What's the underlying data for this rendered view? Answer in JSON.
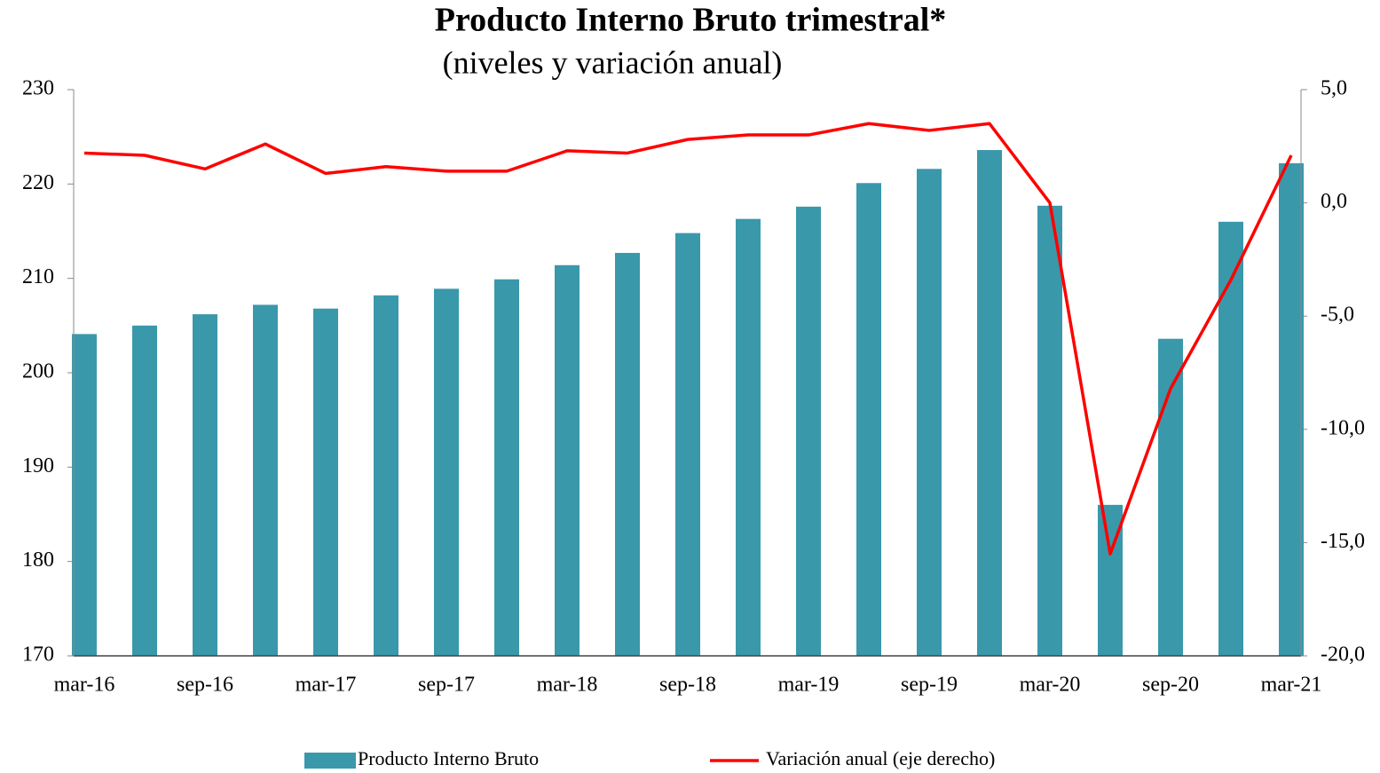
{
  "chart_data": {
    "type": "bar_line",
    "title": "Producto Interno Bruto trimestral*",
    "subtitle": "(niveles y variación anual)",
    "categories": [
      "mar-16",
      null,
      "sep-16",
      null,
      "mar-17",
      null,
      "sep-17",
      null,
      "mar-18",
      null,
      "sep-18",
      null,
      "mar-19",
      null,
      "sep-19",
      null,
      "mar-20",
      null,
      "sep-20",
      null,
      "mar-21"
    ],
    "series": [
      {
        "name": "Producto Interno Bruto",
        "type": "bar",
        "color": "#3a98ab",
        "values": [
          204.1,
          205.0,
          206.2,
          207.2,
          206.8,
          208.2,
          208.9,
          209.9,
          211.4,
          212.7,
          214.8,
          216.3,
          217.6,
          220.1,
          221.6,
          223.6,
          217.7,
          186.0,
          203.6,
          216.0,
          222.2
        ]
      },
      {
        "name": "Variación anual (eje derecho)",
        "type": "line",
        "axis": "y2",
        "color": "#ff0000",
        "values": [
          2.2,
          2.1,
          1.5,
          2.6,
          1.3,
          1.6,
          1.4,
          1.4,
          2.3,
          2.2,
          2.8,
          3.0,
          3.0,
          3.5,
          3.2,
          3.5,
          0.0,
          -15.5,
          -8.2,
          -3.4,
          2.1
        ]
      }
    ],
    "ylim": [
      170,
      230
    ],
    "yticks": [
      170,
      180,
      190,
      200,
      210,
      220,
      230
    ],
    "y2lim": [
      -20,
      5
    ],
    "y2ticks": [
      {
        "value": -20,
        "label": "-20,0"
      },
      {
        "value": -15,
        "label": "-15,0"
      },
      {
        "value": -10,
        "label": "-10,0"
      },
      {
        "value": -5,
        "label": "-5,0"
      },
      {
        "value": 0,
        "label": "0,0"
      },
      {
        "value": 5,
        "label": "5,0"
      }
    ],
    "legend": "bottom"
  }
}
